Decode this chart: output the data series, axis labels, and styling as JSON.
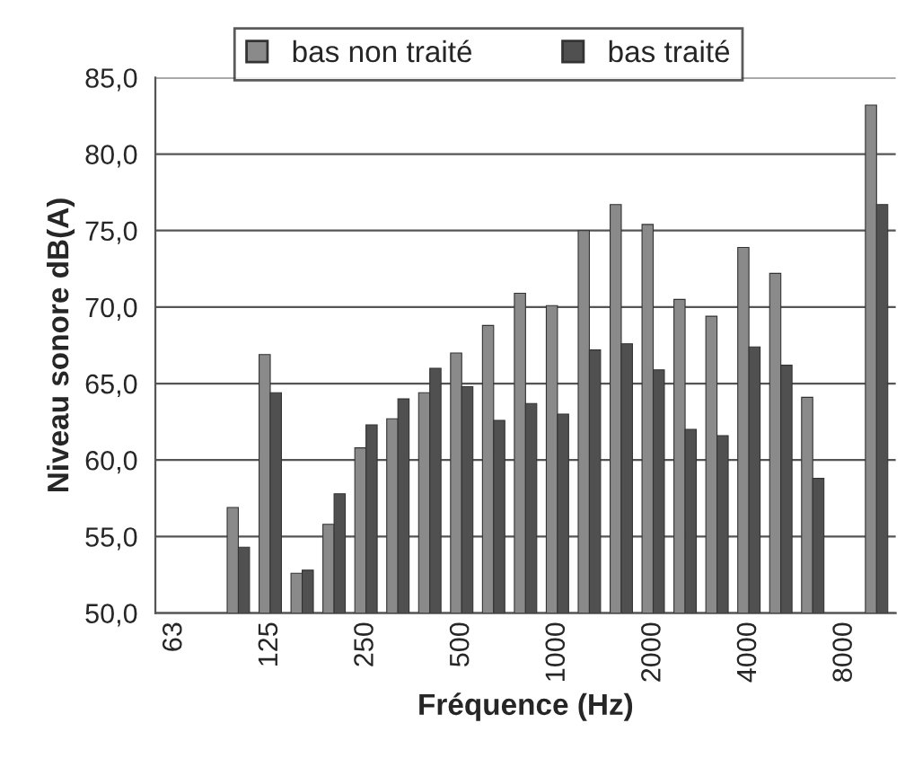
{
  "chart_data": {
    "type": "bar",
    "xlabel": "Fréquence (Hz)",
    "ylabel": "Niveau sonore dB(A)",
    "categories": [
      "63",
      null,
      null,
      "125",
      null,
      null,
      "250",
      null,
      null,
      "500",
      null,
      null,
      "1000",
      null,
      null,
      "2000",
      null,
      null,
      "4000",
      null,
      null,
      "8000",
      null
    ],
    "series": [
      {
        "name": "bas non traité",
        "color": "#8a8a8a",
        "values": [
          null,
          null,
          56.9,
          66.9,
          52.6,
          55.8,
          60.8,
          62.7,
          64.4,
          67.0,
          68.8,
          70.9,
          70.1,
          75.0,
          76.7,
          75.4,
          70.5,
          69.4,
          73.9,
          72.2,
          64.1,
          null,
          83.2
        ]
      },
      {
        "name": "bas traité",
        "color": "#505050",
        "values": [
          null,
          null,
          54.3,
          64.4,
          52.8,
          57.8,
          62.3,
          64.0,
          66.0,
          64.8,
          62.6,
          63.7,
          63.0,
          67.2,
          67.6,
          65.9,
          62.0,
          61.6,
          67.4,
          66.2,
          58.8,
          null,
          76.7
        ]
      }
    ],
    "ylim": [
      50,
      85
    ],
    "yticks": [
      {
        "value": 50,
        "label": "50,0"
      },
      {
        "value": 55,
        "label": "55,0"
      },
      {
        "value": 60,
        "label": "60,0"
      },
      {
        "value": 65,
        "label": "65,0"
      },
      {
        "value": 70,
        "label": "70,0"
      },
      {
        "value": 75,
        "label": "75,0"
      },
      {
        "value": 80,
        "label": "80,0"
      },
      {
        "value": 85,
        "label": "85,0"
      }
    ],
    "grid": "y",
    "legend": "top"
  }
}
